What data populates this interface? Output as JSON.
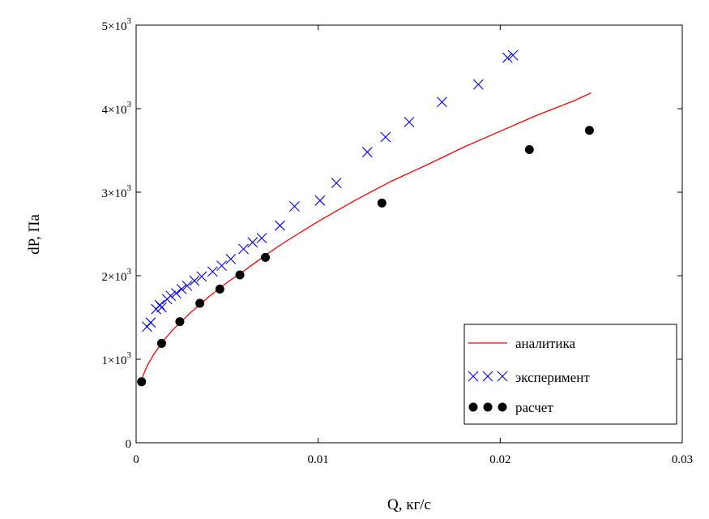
{
  "chart_data": {
    "type": "scatter",
    "xlabel": "Q, кг/с",
    "ylabel": "dP, Па",
    "xlim": [
      0,
      0.03
    ],
    "ylim": [
      0,
      5000
    ],
    "x_ticks": [
      0,
      0.01,
      0.02,
      0.03
    ],
    "x_tick_labels": [
      "0",
      "0.01",
      "0.02",
      "0.03"
    ],
    "y_ticks": [
      0,
      1000,
      2000,
      3000,
      4000,
      5000
    ],
    "y_tick_labels": [
      {
        "mantissa": "0",
        "exponent": ""
      },
      {
        "mantissa": "1×10",
        "exponent": "3"
      },
      {
        "mantissa": "2×10",
        "exponent": "3"
      },
      {
        "mantissa": "3×10",
        "exponent": "3"
      },
      {
        "mantissa": "4×10",
        "exponent": "3"
      },
      {
        "mantissa": "5×10",
        "exponent": "3"
      }
    ],
    "grid": false,
    "legend_position": "bottom-right",
    "series": [
      {
        "name": "аналитика",
        "style": "line",
        "color": "#ff0000",
        "points": [
          [
            0.0003,
            760
          ],
          [
            0.0006,
            920
          ],
          [
            0.001,
            1070
          ],
          [
            0.0015,
            1220
          ],
          [
            0.002,
            1350
          ],
          [
            0.003,
            1560
          ],
          [
            0.004,
            1750
          ],
          [
            0.005,
            1920
          ],
          [
            0.006,
            2070
          ],
          [
            0.007,
            2230
          ],
          [
            0.008,
            2380
          ],
          [
            0.01,
            2650
          ],
          [
            0.012,
            2900
          ],
          [
            0.014,
            3130
          ],
          [
            0.016,
            3330
          ],
          [
            0.018,
            3540
          ],
          [
            0.02,
            3730
          ],
          [
            0.022,
            3920
          ],
          [
            0.024,
            4090
          ],
          [
            0.025,
            4190
          ]
        ]
      },
      {
        "name": "эксперимент",
        "style": "cross",
        "color": "#0000ff",
        "points": [
          [
            0.0006,
            1390
          ],
          [
            0.0008,
            1440
          ],
          [
            0.0011,
            1600
          ],
          [
            0.0013,
            1650
          ],
          [
            0.0014,
            1620
          ],
          [
            0.0017,
            1720
          ],
          [
            0.0019,
            1760
          ],
          [
            0.0022,
            1790
          ],
          [
            0.0025,
            1840
          ],
          [
            0.0028,
            1880
          ],
          [
            0.0032,
            1940
          ],
          [
            0.0036,
            1990
          ],
          [
            0.0042,
            2050
          ],
          [
            0.0047,
            2120
          ],
          [
            0.0052,
            2200
          ],
          [
            0.0059,
            2320
          ],
          [
            0.0064,
            2400
          ],
          [
            0.0069,
            2450
          ],
          [
            0.0079,
            2600
          ],
          [
            0.0087,
            2830
          ],
          [
            0.0101,
            2900
          ],
          [
            0.011,
            3110
          ],
          [
            0.0127,
            3480
          ],
          [
            0.0137,
            3660
          ],
          [
            0.015,
            3840
          ],
          [
            0.0168,
            4080
          ],
          [
            0.0188,
            4290
          ],
          [
            0.0204,
            4610
          ],
          [
            0.0207,
            4640
          ]
        ]
      },
      {
        "name": "расчет",
        "style": "dot",
        "color": "#000000",
        "points": [
          [
            0.0003,
            730
          ],
          [
            0.0014,
            1190
          ],
          [
            0.0024,
            1450
          ],
          [
            0.0035,
            1670
          ],
          [
            0.0046,
            1840
          ],
          [
            0.0057,
            2010
          ],
          [
            0.0071,
            2220
          ],
          [
            0.0135,
            2870
          ],
          [
            0.0216,
            3510
          ],
          [
            0.0249,
            3740
          ]
        ]
      }
    ]
  }
}
